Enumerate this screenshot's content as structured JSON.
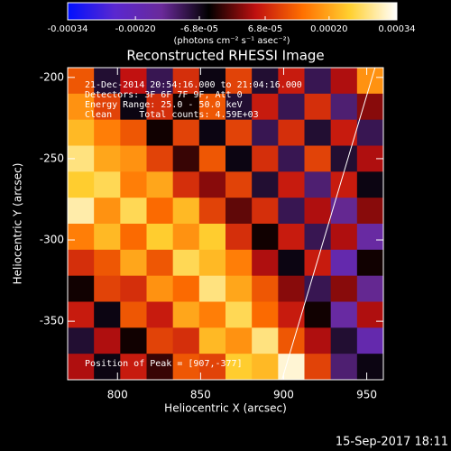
{
  "chart_data": {
    "type": "heatmap",
    "title": "Reconstructed RHESSI Image",
    "xlabel": "Heliocentric X (arcsec)",
    "ylabel": "Heliocentric Y (arcsec)",
    "xlim": [
      770,
      960
    ],
    "ylim": [
      -386,
      -194
    ],
    "xticks": [
      800,
      850,
      900,
      950
    ],
    "yticks": [
      -350,
      -300,
      -250,
      -200
    ],
    "z": [
      [
        0.00012,
        -8e-05,
        5e-05,
        -0.0001,
        8e-05,
        -6e-05,
        0.0001,
        -8e-05,
        6e-05,
        -0.0001,
        4e-05,
        0.00018
      ],
      [
        0.00018,
        0.0001,
        -6e-05,
        8e-05,
        -4e-05,
        0.00012,
        -8e-05,
        6e-05,
        -0.0001,
        8e-05,
        -0.00012,
        2e-05
      ],
      [
        0.00022,
        0.00016,
        0.00012,
        -4e-05,
        0.0001,
        -6e-05,
        0.0001,
        -0.0001,
        8e-05,
        -8e-05,
        6e-05,
        -0.0001
      ],
      [
        0.00028,
        0.0002,
        0.00018,
        0.0001,
        -2e-05,
        0.00012,
        -6e-05,
        8e-05,
        -0.0001,
        0.0001,
        -8e-05,
        4e-05
      ],
      [
        0.00024,
        0.00026,
        0.00016,
        0.0002,
        8e-05,
        2e-05,
        0.0001,
        -8e-05,
        6e-05,
        -0.00012,
        6e-05,
        -6e-05
      ],
      [
        0.0003,
        0.00018,
        0.00026,
        0.00014,
        0.00022,
        0.0001,
        0.0,
        8e-05,
        -0.0001,
        4e-05,
        -0.00014,
        2e-05
      ],
      [
        0.00016,
        0.00022,
        0.00014,
        0.00024,
        0.00018,
        0.00024,
        8e-05,
        -4e-05,
        6e-05,
        -0.0001,
        4e-05,
        -0.00016
      ],
      [
        8e-05,
        0.00012,
        0.0002,
        0.00012,
        0.00026,
        0.00022,
        0.00016,
        4e-05,
        -6e-05,
        6e-05,
        -0.00018,
        -4e-05
      ],
      [
        -4e-05,
        0.0001,
        8e-05,
        0.00018,
        0.00014,
        0.00028,
        0.0002,
        0.00012,
        2e-05,
        -0.0001,
        2e-05,
        -0.00014
      ],
      [
        6e-05,
        -6e-05,
        0.00012,
        6e-05,
        0.0002,
        0.00016,
        0.00026,
        0.00014,
        6e-05,
        -4e-05,
        -0.00016,
        4e-05
      ],
      [
        -8e-05,
        4e-05,
        -4e-05,
        0.0001,
        8e-05,
        0.00022,
        0.00018,
        0.00028,
        0.00012,
        4e-05,
        -8e-05,
        -0.00018
      ],
      [
        4e-05,
        -6e-05,
        6e-05,
        -2e-05,
        0.00012,
        0.0001,
        0.00024,
        0.00022,
        0.00032,
        0.0001,
        -0.00012,
        -6e-05
      ]
    ],
    "colorbar": {
      "zlim": [
        -0.00034,
        0.00034
      ],
      "ticks": [
        -0.00034,
        {
          "value": -0.0002,
          "label": "-0.00020"
        },
        {
          "value": -6.8e-05,
          "label": "-6.8e-05"
        },
        {
          "value": 6.8e-05,
          "label": "6.8e-05"
        },
        {
          "value": 0.0002,
          "label": "0.00020"
        },
        0.00034
      ],
      "label": "(photons cm⁻² s⁻¹ asec⁻²)",
      "colors": [
        "#0010ff",
        "#5a28d0",
        "#6a2a9a",
        "#000000",
        "#c01010",
        "#ff7000",
        "#ffd030",
        "#ffffff"
      ]
    },
    "annotations": [
      "21-Dec-2014 20:54:16.000 to 21:04:16.000",
      "Detectors: 3F 6F 7F 9F, Att 0",
      "Energy Range: 25.0 - 50.0 keV",
      "Clean     Total counts: 4.59E+03"
    ],
    "peak_note": "Position of Peak = [907,-377]",
    "limb": {
      "x": [
        899,
        955
      ],
      "y": [
        -386,
        -194
      ]
    },
    "timestamp": "15-Sep-2017 18:11"
  }
}
